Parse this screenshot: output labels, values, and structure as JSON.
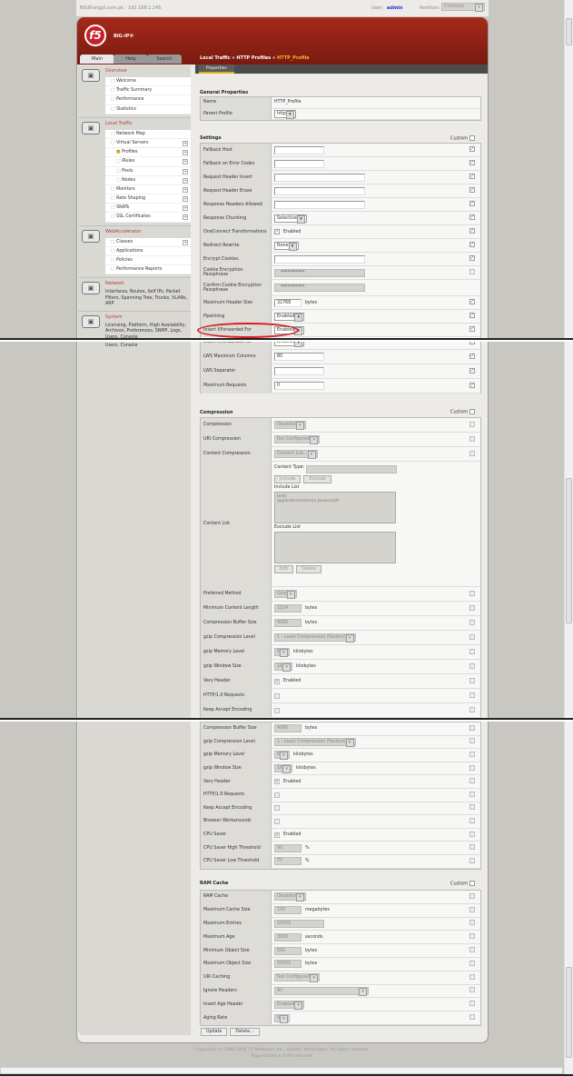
{
  "browser": {
    "title": "BIGIP.engpl.com.pk - 192.168.1.245",
    "user_label": "User:",
    "user": "admin",
    "partition_label": "Partition:",
    "partition": "Common"
  },
  "header": {
    "logo": "f5",
    "product": "BIG-IP®",
    "tabs": [
      "Main",
      "Help",
      "Search"
    ],
    "breadcrumb": [
      "Local Traffic",
      "HTTP Profiles",
      "HTTP_Profile"
    ],
    "separator": "»",
    "subtab": "Properties"
  },
  "sidebar": {
    "sections": [
      {
        "title": "Overview",
        "icon": "overview-icon",
        "items": [
          {
            "label": "Welcome"
          },
          {
            "label": "Traffic Summary"
          },
          {
            "label": "Performance"
          },
          {
            "label": "Statistics"
          }
        ]
      },
      {
        "title": "Local Traffic",
        "icon": "local-traffic-icon",
        "items": [
          {
            "label": "Network Map"
          },
          {
            "label": "Virtual Servers",
            "plus": true
          },
          {
            "label": "Profiles",
            "plus": true,
            "sub": true,
            "active": true
          },
          {
            "label": "iRules",
            "plus": true,
            "sub": true
          },
          {
            "label": "Pools",
            "plus": true,
            "sub": true
          },
          {
            "label": "Nodes",
            "plus": true,
            "sub": true
          },
          {
            "label": "Monitors",
            "plus": true
          },
          {
            "label": "Rate Shaping",
            "plus": true
          },
          {
            "label": "SNATs",
            "plus": true
          },
          {
            "label": "SSL Certificates",
            "plus": true
          }
        ]
      },
      {
        "title": "WebAccelerator",
        "icon": "webaccelerator-icon",
        "items": [
          {
            "label": "Classes",
            "plus": true
          },
          {
            "label": "Applications"
          },
          {
            "label": "Policies"
          },
          {
            "label": "Performance Reports"
          }
        ]
      },
      {
        "title": "Network",
        "icon": "network-icon",
        "desc": "Interfaces, Routes, Self IPs, Packet Filters, Spanning Tree, Trunks, VLANs, ARP"
      },
      {
        "title": "System",
        "icon": "system-icon",
        "desc": "Licensing, Platform, High Availability, Archives, Preferences, SNMP, Logs, Users, Console"
      }
    ],
    "tail": "Users, Console"
  },
  "general": {
    "title": "General Properties",
    "rows": [
      {
        "label": "Name",
        "control": {
          "type": "static",
          "value": "HTTP_Profile"
        }
      },
      {
        "label": "Parent Profile",
        "control": {
          "type": "select",
          "value": "http"
        }
      }
    ]
  },
  "custom_label": "Custom",
  "settings": {
    "title": "Settings",
    "custom": false,
    "rows": [
      {
        "label": "Fallback Host",
        "control": {
          "type": "text",
          "value": ""
        },
        "custom": true
      },
      {
        "label": "Fallback on Error Codes",
        "control": {
          "type": "text",
          "value": ""
        },
        "custom": true
      },
      {
        "label": "Request Header Insert",
        "control": {
          "type": "text",
          "value": ""
        },
        "custom": true
      },
      {
        "label": "Request Header Erase",
        "control": {
          "type": "text",
          "value": ""
        },
        "custom": true
      },
      {
        "label": "Response Headers Allowed",
        "control": {
          "type": "text",
          "value": ""
        },
        "custom": true
      },
      {
        "label": "Response Chunking",
        "control": {
          "type": "select",
          "value": "Selective"
        },
        "custom": true
      },
      {
        "label": "OneConnect Transformations",
        "control": {
          "type": "checkbox",
          "checked": true,
          "text": "Enabled"
        },
        "custom": true
      },
      {
        "label": "Redirect Rewrite",
        "control": {
          "type": "select",
          "value": "None"
        },
        "custom": true
      },
      {
        "label": "Encrypt Cookies",
        "control": {
          "type": "text",
          "value": ""
        },
        "custom": true
      },
      {
        "label": "Cookie Encryption Passphrase",
        "control": {
          "type": "password",
          "value": "***********"
        },
        "custom": false
      },
      {
        "label": "Confirm Cookie Encryption Passphrase",
        "control": {
          "type": "password",
          "value": "***********"
        }
      },
      {
        "label": "Maximum Header Size",
        "control": {
          "type": "text",
          "value": "32768",
          "unit": "bytes"
        },
        "custom": true
      },
      {
        "label": "Pipelining",
        "control": {
          "type": "select",
          "value": "Enabled"
        },
        "custom": true
      },
      {
        "label": "Insert XForwarded For",
        "control": {
          "type": "select",
          "value": "Enabled"
        },
        "custom": true,
        "highlighted": true
      },
      {
        "label": "LWS Maximum Columns",
        "control": {
          "type": "text",
          "value": "80"
        },
        "custom": true
      },
      {
        "label": "LWS Separator",
        "control": {
          "type": "text",
          "value": ""
        },
        "custom": true
      },
      {
        "label": "Maximum Requests",
        "control": {
          "type": "text",
          "value": "0"
        },
        "custom": true
      }
    ]
  },
  "compression": {
    "title": "Compression",
    "custom": false,
    "rows": [
      {
        "label": "Compression",
        "control": {
          "type": "select",
          "value": "Disabled",
          "disabled": true
        },
        "custom": false
      },
      {
        "label": "URI Compression",
        "control": {
          "type": "select",
          "value": "Not Configured",
          "disabled": true
        },
        "custom": false
      },
      {
        "label": "Content Compression",
        "control": {
          "type": "select",
          "value": "Content List...",
          "disabled": true
        },
        "custom": false
      },
      {
        "label": "Content List",
        "control": {
          "type": "contentlist",
          "content_type_label": "Content Type:",
          "include_button": "Include",
          "exclude_button": "Exclude",
          "include_label": "Include List",
          "include_items": [
            "text/",
            "application/(x|ms|x-javascript)"
          ],
          "exclude_label": "Exclude List",
          "exclude_items": [],
          "edit_button": "Edit",
          "delete_button": "Delete"
        }
      },
      {
        "label": "Preferred Method",
        "control": {
          "type": "select",
          "value": "Gzip",
          "disabled": true
        },
        "custom": false
      },
      {
        "label": "Minimum Content Length",
        "control": {
          "type": "text",
          "value": "1024",
          "unit": "bytes",
          "disabled": true
        },
        "custom": false
      },
      {
        "label": "Compression Buffer Size",
        "control": {
          "type": "text",
          "value": "4096",
          "unit": "bytes",
          "disabled": true
        },
        "custom": false
      },
      {
        "label": "gzip Compression Level",
        "control": {
          "type": "select",
          "value": "1 - Least Compression (Fastest)",
          "disabled": true
        },
        "custom": false
      },
      {
        "label": "gzip Memory Level",
        "control": {
          "type": "select",
          "value": "8",
          "unit": "kilobytes",
          "disabled": true
        },
        "custom": false
      },
      {
        "label": "gzip Window Size",
        "control": {
          "type": "select",
          "value": "16",
          "unit": "kilobytes",
          "disabled": true
        },
        "custom": false
      },
      {
        "label": "Vary Header",
        "control": {
          "type": "checkbox",
          "checked": true,
          "text": "Enabled",
          "disabled": true
        },
        "custom": false
      },
      {
        "label": "HTTP/1.0 Requests",
        "control": {
          "type": "checkbox",
          "checked": false,
          "disabled": true
        },
        "custom": false
      },
      {
        "label": "Keep Accept Encoding",
        "control": {
          "type": "checkbox",
          "checked": false,
          "disabled": true
        },
        "custom": false
      },
      {
        "label": "Browser Workarounds",
        "control": {
          "type": "checkbox",
          "checked": false,
          "disabled": true
        },
        "custom": false
      },
      {
        "label": "CPU Saver",
        "control": {
          "type": "checkbox",
          "checked": true,
          "text": "Enabled",
          "disabled": true
        },
        "custom": false
      },
      {
        "label": "CPU Saver High Threshold",
        "control": {
          "type": "text",
          "value": "90",
          "unit": "%",
          "disabled": true
        },
        "custom": false
      },
      {
        "label": "CPU Saver Low Threshold",
        "control": {
          "type": "text",
          "value": "75",
          "unit": "%",
          "disabled": true
        },
        "custom": false
      }
    ]
  },
  "ramcache": {
    "title": "RAM Cache",
    "custom": false,
    "rows": [
      {
        "label": "RAM Cache",
        "control": {
          "type": "select",
          "value": "Disabled",
          "disabled": true
        },
        "custom": false
      },
      {
        "label": "Maximum Cache Size",
        "control": {
          "type": "text",
          "value": "100",
          "unit": "megabytes",
          "disabled": true
        },
        "custom": false
      },
      {
        "label": "Maximum Entries",
        "control": {
          "type": "text",
          "value": "10000",
          "disabled": true
        },
        "custom": false
      },
      {
        "label": "Maximum Age",
        "control": {
          "type": "text",
          "value": "3600",
          "unit": "seconds",
          "disabled": true
        },
        "custom": false
      },
      {
        "label": "Minimum Object Size",
        "control": {
          "type": "text",
          "value": "500",
          "unit": "bytes",
          "disabled": true
        },
        "custom": false
      },
      {
        "label": "Maximum Object Size",
        "control": {
          "type": "text",
          "value": "50000",
          "unit": "bytes",
          "disabled": true
        },
        "custom": false
      },
      {
        "label": "URI Caching",
        "control": {
          "type": "select",
          "value": "Not Configured",
          "disabled": true
        },
        "custom": false
      },
      {
        "label": "Ignore Headers",
        "control": {
          "type": "select",
          "value": "All",
          "disabled": true
        },
        "custom": false
      },
      {
        "label": "Insert Age Header",
        "control": {
          "type": "select",
          "value": "Enabled",
          "disabled": true
        },
        "custom": false
      },
      {
        "label": "Aging Rate",
        "control": {
          "type": "select",
          "value": "9",
          "disabled": true
        },
        "custom": false
      }
    ]
  },
  "actions": {
    "update": "Update",
    "delete": "Delete..."
  },
  "footer": {
    "copyright": "Copyright (c) 1996-2009, F5 Networks, Inc., Seattle, Washington. All rights reserved.",
    "loaded": "Page loaded in 0.204 seconds."
  },
  "colors": {
    "header_red": "#a52a1a",
    "breadcrumb_current": "#f7b52a",
    "section_title": "#b0413e",
    "highlight_oval": "#d52020"
  }
}
